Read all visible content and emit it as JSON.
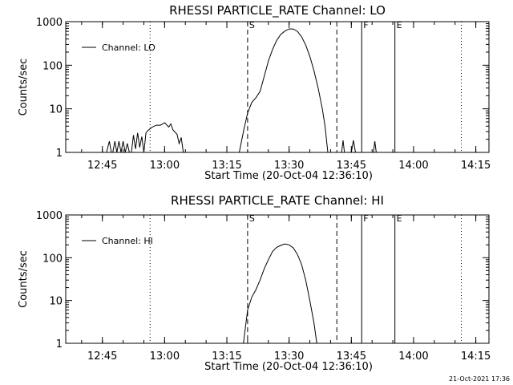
{
  "footer_timestamp": "21-Oct-2021 17:36",
  "chart_data": [
    {
      "type": "line",
      "title": "RHESSI PARTICLE_RATE Channel: LO",
      "xlabel": "Start Time (20-Oct-04 12:36:10)",
      "ylabel": "Counts/sec",
      "yscale": "log",
      "ylim": [
        1,
        1000
      ],
      "x_ticks": [
        "12:45",
        "13:00",
        "13:15",
        "13:30",
        "13:45",
        "14:00",
        "14:15"
      ],
      "y_ticks": [
        "1",
        "10",
        "100",
        "1000"
      ],
      "legend": {
        "label": "Channel: LO",
        "position": "top-left"
      },
      "markers": [
        {
          "label": "",
          "time": "12:56:30",
          "style": "dotted"
        },
        {
          "label": "S",
          "time": "13:20:00",
          "style": "dashed"
        },
        {
          "label": "",
          "time": "13:41:30",
          "style": "dashed"
        },
        {
          "label": "F",
          "time": "13:47:30",
          "style": "solid"
        },
        {
          "label": "E",
          "time": "13:55:30",
          "style": "solid"
        },
        {
          "label": "",
          "time": "14:11:30",
          "style": "dotted"
        }
      ],
      "segments": [
        [
          [
            "12:46:00",
            1
          ],
          [
            "12:46:40",
            1.8
          ],
          [
            "12:47:10",
            1
          ]
        ],
        [
          [
            "12:47:30",
            1
          ],
          [
            "12:48:00",
            1.8
          ],
          [
            "12:48:30",
            1
          ],
          [
            "12:49:00",
            1.8
          ],
          [
            "12:49:30",
            1
          ],
          [
            "12:50:00",
            1.8
          ],
          [
            "12:50:30",
            1
          ],
          [
            "12:51:00",
            1.6
          ],
          [
            "12:51:30",
            1
          ]
        ],
        [
          [
            "12:52:00",
            1
          ],
          [
            "12:52:30",
            2.5
          ],
          [
            "12:53:00",
            1.2
          ],
          [
            "12:53:30",
            2.8
          ],
          [
            "12:54:00",
            1.3
          ],
          [
            "12:54:30",
            2.3
          ],
          [
            "12:55:00",
            1
          ],
          [
            "12:55:30",
            2.8
          ],
          [
            "12:56:00",
            3.2
          ],
          [
            "12:57:00",
            3.8
          ],
          [
            "12:58:00",
            4.2
          ],
          [
            "12:59:00",
            4.2
          ],
          [
            "13:00:00",
            4.8
          ],
          [
            "13:01:00",
            3.8
          ],
          [
            "13:01:30",
            4.5
          ],
          [
            "13:02:00",
            3.3
          ],
          [
            "13:03:00",
            2.6
          ],
          [
            "13:03:30",
            1.6
          ],
          [
            "13:04:00",
            2.2
          ],
          [
            "13:04:30",
            1
          ]
        ],
        [
          [
            "13:18:00",
            1
          ],
          [
            "13:19:00",
            3.0
          ],
          [
            "13:20:00",
            8
          ],
          [
            "13:21:00",
            14
          ],
          [
            "13:22:00",
            18
          ],
          [
            "13:23:00",
            25
          ],
          [
            "13:24:00",
            55
          ],
          [
            "13:25:00",
            125
          ],
          [
            "13:26:00",
            230
          ],
          [
            "13:27:00",
            370
          ],
          [
            "13:28:00",
            510
          ],
          [
            "13:29:00",
            610
          ],
          [
            "13:30:00",
            680
          ],
          [
            "13:31:00",
            680
          ],
          [
            "13:32:00",
            600
          ],
          [
            "13:33:00",
            450
          ],
          [
            "13:34:00",
            290
          ],
          [
            "13:35:00",
            160
          ],
          [
            "13:36:00",
            75
          ],
          [
            "13:37:00",
            30
          ],
          [
            "13:38:00",
            10
          ],
          [
            "13:38:40",
            4
          ],
          [
            "13:39:20",
            1
          ]
        ],
        [
          [
            "13:42:40",
            1
          ],
          [
            "13:43:00",
            1.9
          ],
          [
            "13:43:20",
            1
          ]
        ],
        [
          [
            "13:45:00",
            1
          ],
          [
            "13:45:30",
            1.9
          ],
          [
            "13:46:00",
            1
          ]
        ],
        [
          [
            "13:50:20",
            1
          ],
          [
            "13:50:40",
            1.8
          ],
          [
            "13:51:00",
            1
          ]
        ]
      ]
    },
    {
      "type": "line",
      "title": "RHESSI PARTICLE_RATE Channel: HI",
      "xlabel": "Start Time (20-Oct-04 12:36:10)",
      "ylabel": "Counts/sec",
      "yscale": "log",
      "ylim": [
        1,
        1000
      ],
      "x_ticks": [
        "12:45",
        "13:00",
        "13:15",
        "13:30",
        "13:45",
        "14:00",
        "14:15"
      ],
      "y_ticks": [
        "1",
        "10",
        "100",
        "1000"
      ],
      "legend": {
        "label": "Channel: HI",
        "position": "top-left"
      },
      "markers": [
        {
          "label": "",
          "time": "12:56:30",
          "style": "dotted"
        },
        {
          "label": "S",
          "time": "13:20:00",
          "style": "dashed"
        },
        {
          "label": "",
          "time": "13:41:30",
          "style": "dashed"
        },
        {
          "label": "F",
          "time": "13:47:30",
          "style": "solid"
        },
        {
          "label": "E",
          "time": "13:55:30",
          "style": "solid"
        },
        {
          "label": "",
          "time": "14:11:30",
          "style": "dotted"
        }
      ],
      "segments": [
        [
          [
            "13:19:00",
            1
          ],
          [
            "13:20:00",
            6
          ],
          [
            "13:21:00",
            12
          ],
          [
            "13:22:00",
            18
          ],
          [
            "13:23:00",
            30
          ],
          [
            "13:24:00",
            55
          ],
          [
            "13:25:00",
            90
          ],
          [
            "13:26:00",
            140
          ],
          [
            "13:27:00",
            175
          ],
          [
            "13:28:00",
            195
          ],
          [
            "13:29:00",
            210
          ],
          [
            "13:30:00",
            200
          ],
          [
            "13:31:00",
            170
          ],
          [
            "13:32:00",
            120
          ],
          [
            "13:33:00",
            70
          ],
          [
            "13:34:00",
            30
          ],
          [
            "13:35:00",
            10
          ],
          [
            "13:36:00",
            3
          ],
          [
            "13:36:40",
            1
          ]
        ]
      ]
    }
  ]
}
